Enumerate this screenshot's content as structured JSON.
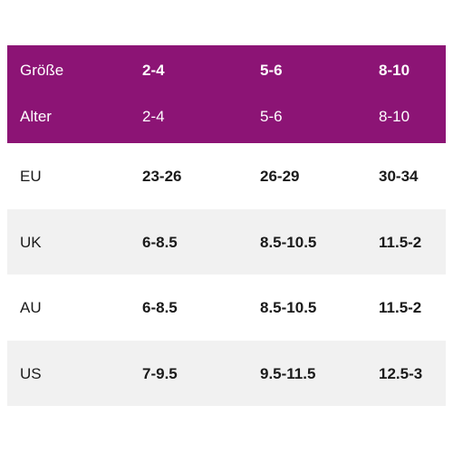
{
  "header": {
    "rows": [
      [
        "Größe",
        "2-4",
        "5-6",
        "8-10"
      ],
      [
        "Alter",
        "2-4",
        "5-6",
        "8-10"
      ]
    ]
  },
  "table": {
    "rows": [
      [
        "EU",
        "23-26",
        "26-29",
        "30-34"
      ],
      [
        "UK",
        "6-8.5",
        "8.5-10.5",
        "11.5-2"
      ],
      [
        "AU",
        "6-8.5",
        "8.5-10.5",
        "11.5-2"
      ],
      [
        "US",
        "7-9.5",
        "9.5-11.5",
        "12.5-3"
      ]
    ]
  }
}
